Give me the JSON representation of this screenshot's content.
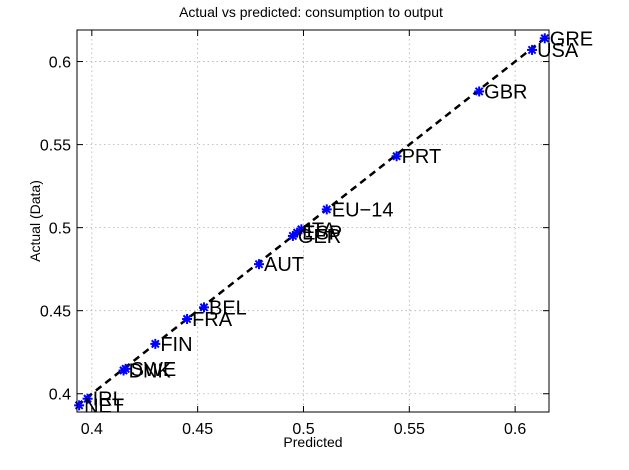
{
  "chart_data": {
    "type": "scatter",
    "title": "Actual vs predicted: consumption to output",
    "xlabel": "Predicted",
    "ylabel": "Actual (Data)",
    "xlim": [
      0.393,
      0.616
    ],
    "ylim": [
      0.389,
      0.619
    ],
    "xticks": [
      0.4,
      0.45,
      0.5,
      0.55,
      0.6
    ],
    "yticks": [
      0.4,
      0.45,
      0.5,
      0.55,
      0.6
    ],
    "xtick_labels": [
      "0.4",
      "0.45",
      "0.5",
      "0.55",
      "0.6"
    ],
    "ytick_labels": [
      "0.4",
      "0.45",
      "0.5",
      "0.55",
      "0.6"
    ],
    "grid": true,
    "marker_color": "#0000ff",
    "fit_line": {
      "x": [
        0.393,
        0.614
      ],
      "y": [
        0.393,
        0.614
      ]
    },
    "points": [
      {
        "label": "GRE",
        "x": 0.614,
        "y": 0.614
      },
      {
        "label": "USA",
        "x": 0.608,
        "y": 0.607
      },
      {
        "label": "GBR",
        "x": 0.583,
        "y": 0.582
      },
      {
        "label": "PRT",
        "x": 0.544,
        "y": 0.543
      },
      {
        "label": "EU−14",
        "x": 0.511,
        "y": 0.511
      },
      {
        "label": "ITA",
        "x": 0.499,
        "y": 0.499
      },
      {
        "label": "ESP",
        "x": 0.497,
        "y": 0.497
      },
      {
        "label": "GER",
        "x": 0.495,
        "y": 0.495
      },
      {
        "label": "AUT",
        "x": 0.479,
        "y": 0.478
      },
      {
        "label": "BEL",
        "x": 0.453,
        "y": 0.452
      },
      {
        "label": "FRA",
        "x": 0.445,
        "y": 0.445
      },
      {
        "label": "FIN",
        "x": 0.43,
        "y": 0.43
      },
      {
        "label": "SWE",
        "x": 0.416,
        "y": 0.415
      },
      {
        "label": "DNK",
        "x": 0.415,
        "y": 0.414
      },
      {
        "label": "IRL",
        "x": 0.398,
        "y": 0.397
      },
      {
        "label": "NET",
        "x": 0.394,
        "y": 0.393
      }
    ]
  }
}
